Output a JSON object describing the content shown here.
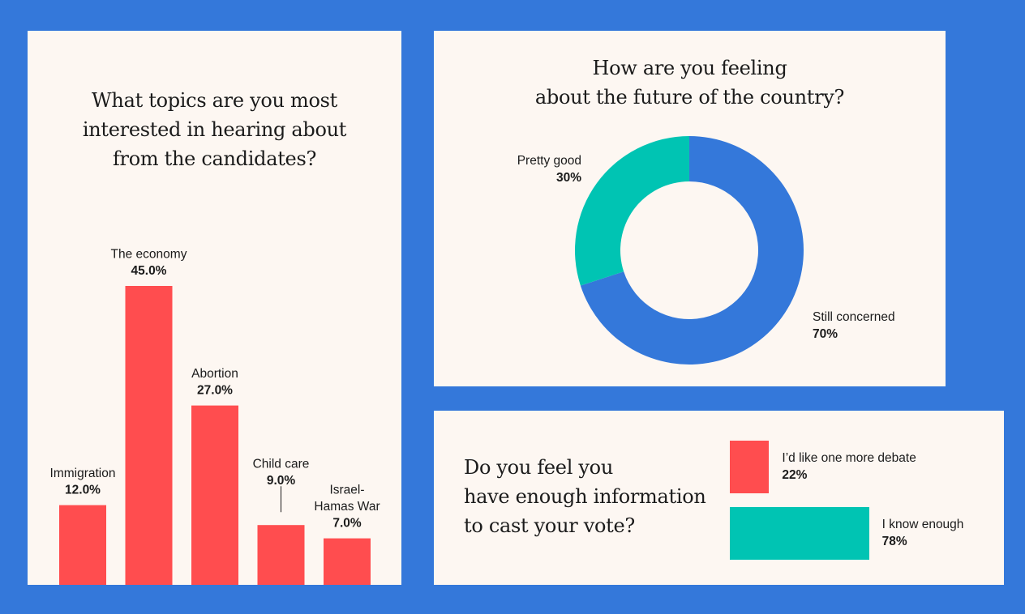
{
  "colors": {
    "background": "#3478DA",
    "panel": "#FDF7F2",
    "red": "#FF4D4F",
    "teal": "#00C4B3",
    "blue": "#3478DA"
  },
  "chart_data": [
    {
      "type": "bar",
      "title_lines": [
        "What topics are you most",
        "interested in hearing about",
        "from the candidates?"
      ],
      "categories": [
        "Immigration",
        "The economy",
        "Abortion",
        "Child care",
        "Israel-Hamas War"
      ],
      "category_label_lines": [
        [
          "Immigration"
        ],
        [
          "The economy"
        ],
        [
          "Abortion"
        ],
        [
          "Child care"
        ],
        [
          "Israel-",
          "Hamas War"
        ]
      ],
      "values": [
        12.0,
        45.0,
        27.0,
        9.0,
        7.0
      ],
      "value_labels": [
        "12.0%",
        "45.0%",
        "27.0%",
        "9.0%",
        "7.0%"
      ],
      "ylim": [
        0,
        50
      ]
    },
    {
      "type": "pie",
      "style": "donut",
      "title_lines": [
        "How are you feeling",
        "about the future of the country?"
      ],
      "slices": [
        {
          "label": "Still concerned",
          "value": 70,
          "value_label": "70%"
        },
        {
          "label": "Pretty good",
          "value": 30,
          "value_label": "30%"
        }
      ]
    },
    {
      "type": "bar",
      "orientation": "horizontal",
      "title_lines": [
        "Do you feel you",
        "have enough information",
        "to cast your vote?"
      ],
      "categories": [
        "I’d like one more debate",
        "I know enough"
      ],
      "values": [
        22,
        78
      ],
      "value_labels": [
        "22%",
        "78%"
      ]
    }
  ]
}
